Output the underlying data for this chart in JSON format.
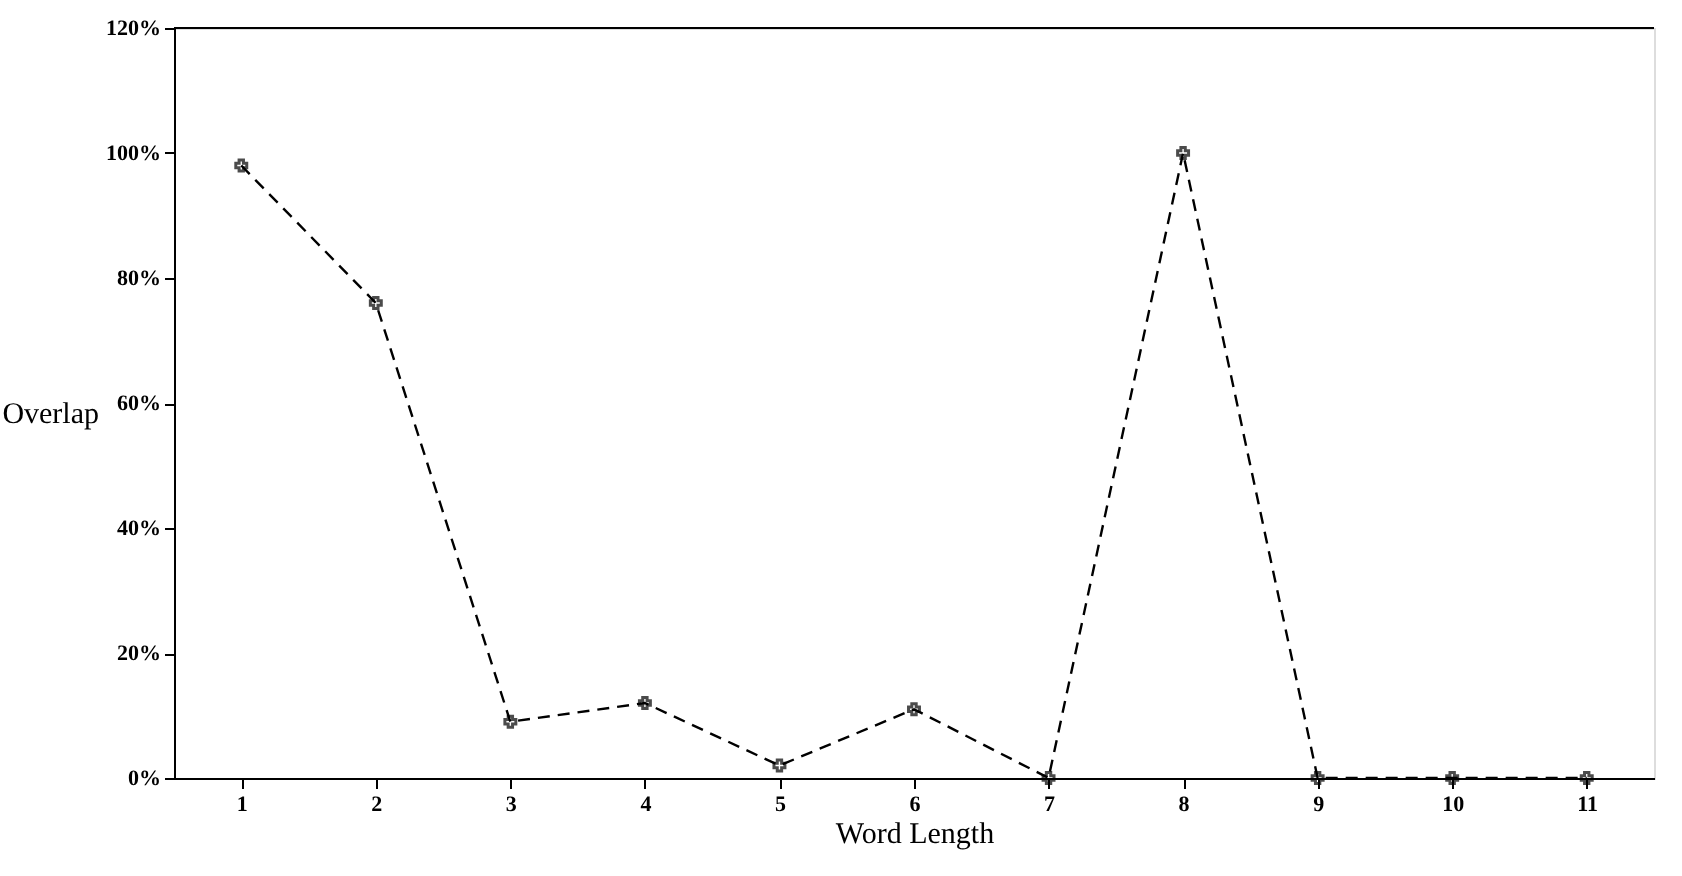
{
  "chart_data": {
    "type": "line",
    "xlabel": "Word Length",
    "ylabel": "Overlap",
    "categories": [
      "1",
      "2",
      "3",
      "4",
      "5",
      "6",
      "7",
      "8",
      "9",
      "10",
      "11"
    ],
    "series": [
      {
        "color": "#000000",
        "values": [
          98,
          76,
          9,
          12,
          2,
          11,
          0,
          100,
          0,
          0,
          0
        ]
      }
    ],
    "ylim": [
      0,
      120
    ],
    "yticks": [
      {
        "value": 0,
        "label": "0%"
      },
      {
        "value": 20,
        "label": "20%"
      },
      {
        "value": 40,
        "label": "40%"
      },
      {
        "value": 60,
        "label": "60%"
      },
      {
        "value": 80,
        "label": "80%"
      },
      {
        "value": 100,
        "label": "100%"
      },
      {
        "value": 120,
        "label": "120%"
      }
    ],
    "marker": "cross",
    "line_style": "dashed",
    "grid": false,
    "legend": false
  }
}
